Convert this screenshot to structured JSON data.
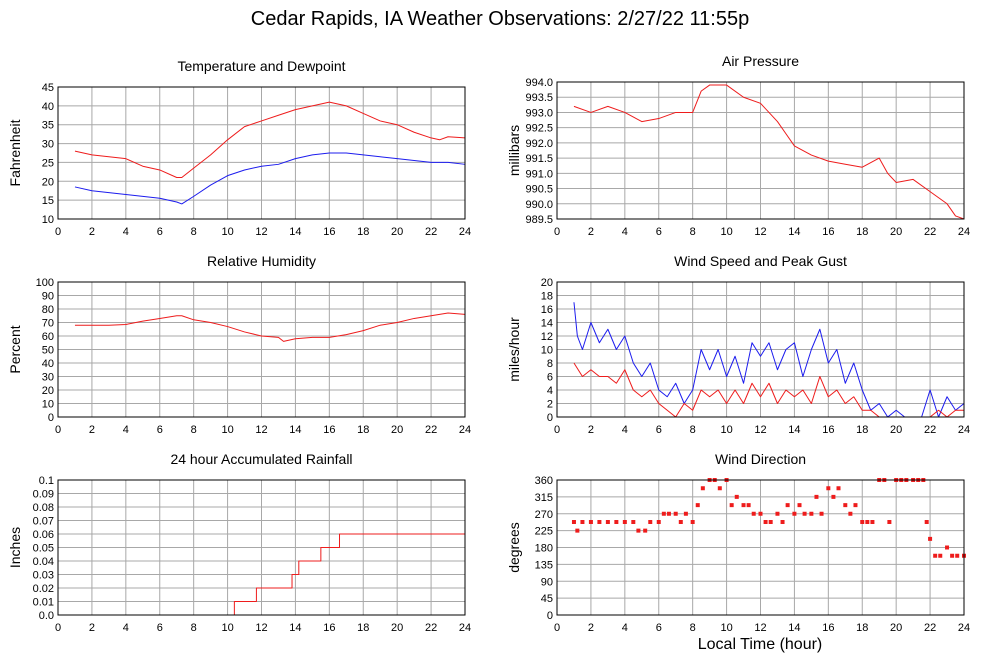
{
  "title": "Cedar Rapids, IA Weather Observations: 2/27/22 11:55p",
  "xlabel": "Local Time (hour)",
  "colors": {
    "red": "#ee1c1c",
    "blue": "#1c1cee",
    "grid": "#a8a8a8"
  },
  "chart_data": [
    {
      "type": "line",
      "title": "Temperature and Dewpoint",
      "ylabel": "Fahrenheit",
      "xlim": [
        0,
        24
      ],
      "ylim": [
        10,
        45
      ],
      "xticks": [
        0,
        2,
        4,
        6,
        8,
        10,
        12,
        14,
        16,
        18,
        20,
        22,
        24
      ],
      "yticks": [
        10,
        15,
        20,
        25,
        30,
        35,
        40,
        45
      ],
      "grid": true,
      "series": [
        {
          "color": "red",
          "x": [
            1,
            2,
            3,
            4,
            5,
            6,
            7,
            7.3,
            8,
            9,
            10,
            11,
            12,
            13,
            14,
            15,
            16,
            17,
            18,
            19,
            20,
            21,
            22,
            22.5,
            23,
            24
          ],
          "y": [
            28,
            27,
            26.5,
            26,
            24,
            23,
            21,
            21,
            23.5,
            27,
            31,
            34.5,
            36,
            37.5,
            39,
            40,
            41,
            40,
            38,
            36,
            35,
            33,
            31.5,
            31,
            31.8,
            31.5
          ]
        },
        {
          "color": "blue",
          "x": [
            1,
            2,
            3,
            4,
            5,
            6,
            7,
            7.3,
            8,
            9,
            10,
            11,
            12,
            13,
            14,
            15,
            16,
            17,
            18,
            19,
            20,
            21,
            22,
            23,
            24
          ],
          "y": [
            18.5,
            17.5,
            17,
            16.5,
            16,
            15.5,
            14.5,
            14,
            16,
            19,
            21.5,
            23,
            24,
            24.5,
            26,
            27,
            27.5,
            27.5,
            27,
            26.5,
            26,
            25.5,
            25,
            25,
            24.5
          ]
        }
      ]
    },
    {
      "type": "line",
      "title": "Air Pressure",
      "ylabel": "millibars",
      "xlim": [
        0,
        24
      ],
      "ylim": [
        989.5,
        994.0
      ],
      "xticks": [
        0,
        2,
        4,
        6,
        8,
        10,
        12,
        14,
        16,
        18,
        20,
        22,
        24
      ],
      "yticks": [
        "989.5",
        "990.0",
        "990.5",
        "991.0",
        "991.5",
        "992.0",
        "992.5",
        "993.0",
        "993.5",
        "994.0"
      ],
      "grid": true,
      "series": [
        {
          "color": "red",
          "x": [
            1,
            2,
            3,
            4,
            5,
            6,
            7,
            8,
            8.5,
            9,
            10,
            11,
            12,
            13,
            13.5,
            14,
            15,
            16,
            17,
            18,
            19,
            19.5,
            20,
            21,
            22,
            23,
            23.5,
            24
          ],
          "y": [
            993.2,
            993.0,
            993.2,
            993.0,
            992.7,
            992.8,
            993.0,
            993.0,
            993.7,
            993.9,
            993.9,
            993.5,
            993.3,
            992.7,
            992.3,
            991.9,
            991.6,
            991.4,
            991.3,
            991.2,
            991.5,
            991.0,
            990.7,
            990.8,
            990.4,
            990.0,
            989.6,
            989.5
          ]
        }
      ]
    },
    {
      "type": "line",
      "title": "Relative Humidity",
      "ylabel": "Percent",
      "xlim": [
        0,
        24
      ],
      "ylim": [
        0,
        100
      ],
      "xticks": [
        0,
        2,
        4,
        6,
        8,
        10,
        12,
        14,
        16,
        18,
        20,
        22,
        24
      ],
      "yticks": [
        0,
        10,
        20,
        30,
        40,
        50,
        60,
        70,
        80,
        90,
        100
      ],
      "grid": true,
      "series": [
        {
          "color": "red",
          "x": [
            1,
            2,
            3,
            4,
            5,
            6,
            7,
            7.3,
            8,
            9,
            10,
            11,
            12,
            13,
            13.3,
            14,
            15,
            16,
            17,
            18,
            19,
            20,
            21,
            22,
            23,
            24
          ],
          "y": [
            68,
            68,
            68,
            68.5,
            71,
            73,
            75,
            75,
            72,
            70,
            67,
            63,
            60,
            59,
            56,
            58,
            59,
            59,
            61,
            64,
            68,
            70,
            73,
            75,
            77,
            76
          ]
        }
      ]
    },
    {
      "type": "line",
      "title": "Wind Speed and Peak Gust",
      "ylabel": "miles/hour",
      "xlim": [
        0,
        24
      ],
      "ylim": [
        0,
        20
      ],
      "xticks": [
        0,
        2,
        4,
        6,
        8,
        10,
        12,
        14,
        16,
        18,
        20,
        22,
        24
      ],
      "yticks": [
        0,
        2,
        4,
        6,
        8,
        10,
        12,
        14,
        16,
        18,
        20
      ],
      "grid": true,
      "series": [
        {
          "color": "blue",
          "x": [
            1,
            1.2,
            1.5,
            2,
            2.5,
            3,
            3.5,
            4,
            4.5,
            5,
            5.5,
            6,
            6.5,
            7,
            7.5,
            8,
            8.5,
            9,
            9.5,
            10,
            10.5,
            11,
            11.5,
            12,
            12.5,
            13,
            13.5,
            14,
            14.5,
            15,
            15.5,
            16,
            16.5,
            17,
            17.5,
            18,
            18.5,
            19,
            19.5,
            20,
            20.5,
            21,
            21.5,
            22,
            22.5,
            23,
            23.5,
            24
          ],
          "y": [
            17,
            12,
            10,
            14,
            11,
            13,
            10,
            12,
            8,
            6,
            8,
            4,
            3,
            5,
            2,
            4,
            10,
            7,
            10,
            6,
            9,
            5,
            11,
            9,
            11,
            7,
            10,
            11,
            6,
            10,
            13,
            8,
            10,
            5,
            8,
            4,
            1,
            2,
            0,
            1,
            0,
            0,
            0,
            4,
            0,
            3,
            1,
            2
          ]
        },
        {
          "color": "red",
          "x": [
            1,
            1.5,
            2,
            2.5,
            3,
            3.5,
            4,
            4.5,
            5,
            5.5,
            6,
            6.5,
            7,
            7.5,
            8,
            8.5,
            9,
            9.5,
            10,
            10.5,
            11,
            11.5,
            12,
            12.5,
            13,
            13.5,
            14,
            14.5,
            15,
            15.5,
            16,
            16.5,
            17,
            17.5,
            18,
            18.5,
            19,
            19.5,
            20,
            20.5,
            21,
            21.5,
            22,
            22.5,
            23,
            23.5,
            24
          ],
          "y": [
            8,
            6,
            7,
            6,
            6,
            5,
            7,
            4,
            3,
            4,
            2,
            1,
            0,
            2,
            1,
            4,
            3,
            4,
            2,
            4,
            2,
            5,
            3,
            5,
            2,
            4,
            3,
            4,
            2,
            6,
            3,
            4,
            2,
            3,
            1,
            1,
            0,
            0,
            0,
            0,
            0,
            0,
            0,
            1,
            0,
            1,
            1
          ]
        }
      ]
    },
    {
      "type": "line",
      "title": "24 hour Accumulated Rainfall",
      "ylabel": "Inches",
      "xlim": [
        0,
        24
      ],
      "ylim": [
        0,
        0.1
      ],
      "xticks": [
        0,
        2,
        4,
        6,
        8,
        10,
        12,
        14,
        16,
        18,
        20,
        22,
        24
      ],
      "yticks": [
        "0.0",
        "0.01",
        "0.02",
        "0.03",
        "0.04",
        "0.05",
        "0.06",
        "0.07",
        "0.08",
        "0.09",
        "0.1"
      ],
      "grid": true,
      "series": [
        {
          "color": "red",
          "step": true,
          "x": [
            1,
            10.4,
            11.7,
            13.8,
            14.2,
            15.5,
            16.6,
            24
          ],
          "y": [
            0,
            0.01,
            0.02,
            0.03,
            0.04,
            0.05,
            0.06,
            0.06
          ]
        }
      ]
    },
    {
      "type": "scatter",
      "title": "Wind Direction",
      "ylabel": "degrees",
      "xlim": [
        0,
        24
      ],
      "ylim": [
        0,
        360
      ],
      "xticks": [
        0,
        2,
        4,
        6,
        8,
        10,
        12,
        14,
        16,
        18,
        20,
        22,
        24
      ],
      "yticks": [
        0,
        45,
        90,
        135,
        180,
        225,
        270,
        315,
        360
      ],
      "grid": true,
      "series": [
        {
          "color": "red",
          "x": [
            1,
            1.2,
            1.5,
            2,
            2.5,
            3,
            3.5,
            4,
            4.5,
            4.8,
            5.2,
            5.5,
            6,
            6.3,
            6.6,
            7,
            7.3,
            7.6,
            8,
            8.3,
            8.6,
            9,
            9.3,
            9.6,
            10,
            10.3,
            10.6,
            11,
            11.3,
            11.6,
            12,
            12.3,
            12.6,
            13,
            13.3,
            13.6,
            14,
            14.3,
            14.6,
            15,
            15.3,
            15.6,
            16,
            16.3,
            16.6,
            17,
            17.3,
            17.6,
            18,
            18.3,
            18.6,
            19,
            19.3,
            19.6,
            20,
            20.3,
            20.6,
            21,
            21.3,
            21.6,
            21.8,
            22,
            22.3,
            22.6,
            23,
            23.3,
            23.6,
            24
          ],
          "y": [
            248,
            225,
            248,
            248,
            248,
            248,
            248,
            248,
            248,
            225,
            225,
            248,
            248,
            270,
            270,
            270,
            248,
            270,
            248,
            293,
            338,
            360,
            360,
            338,
            360,
            293,
            315,
            293,
            293,
            270,
            270,
            248,
            248,
            270,
            248,
            293,
            270,
            293,
            270,
            270,
            315,
            270,
            338,
            315,
            338,
            293,
            270,
            293,
            248,
            248,
            248,
            360,
            360,
            248,
            360,
            360,
            360,
            360,
            360,
            360,
            248,
            203,
            158,
            158,
            180,
            158,
            158,
            158
          ]
        }
      ]
    }
  ]
}
